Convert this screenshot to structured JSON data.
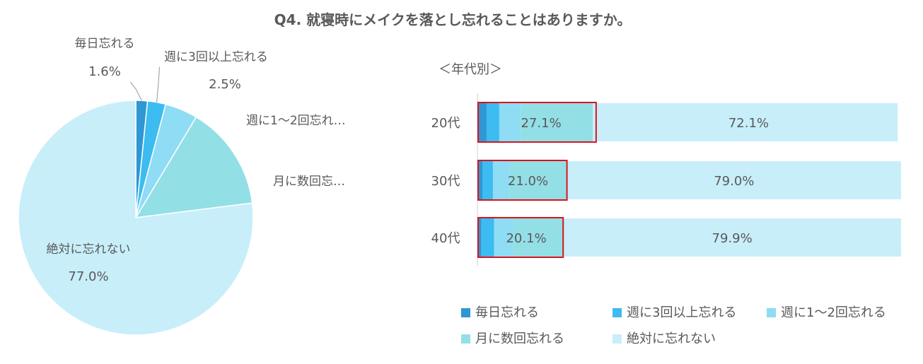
{
  "title": "Q4. 就寝時にメイクを落とし忘れることはありますか。",
  "subtitle": "＜年代別＞",
  "colors": {
    "毎日忘れる": "#2e97d4",
    "週に3回以上忘れる": "#3cbcf0",
    "週に1～2回忘れる": "#8fdcf5",
    "月に数回忘れる": "#93dfe6",
    "絶対に忘れない": "#c8eefa",
    "highlight": "#d9141c"
  },
  "chart_data": [
    {
      "type": "pie",
      "labels": [
        "毎日忘れる",
        "週に3回以上忘れる",
        "週に1～2回忘れ…",
        "月に数回忘…",
        "絶対に忘れない"
      ],
      "series_keys": [
        "毎日忘れる",
        "週に3回以上忘れる",
        "週に1～2回忘れる",
        "月に数回忘れる",
        "絶対に忘れない"
      ],
      "values": [
        1.6,
        2.5,
        4.5,
        14.4,
        77.0
      ],
      "value_labels": [
        "1.6%",
        "2.5%",
        null,
        null,
        "77.0%"
      ]
    },
    {
      "type": "bar",
      "orientation": "horizontal",
      "stacked": true,
      "categories": [
        "20代",
        "30代",
        "40代"
      ],
      "series": [
        {
          "name": "毎日忘れる",
          "values": [
            2.0,
            1.0,
            0.8
          ]
        },
        {
          "name": "週に3回以上忘れる",
          "values": [
            3.0,
            2.5,
            3.0
          ]
        },
        {
          "name": "週に1～2回忘れる",
          "values": [
            5.0,
            4.0,
            4.5
          ]
        },
        {
          "name": "月に数回忘れる",
          "values": [
            17.1,
            13.5,
            11.8
          ]
        },
        {
          "name": "絶対に忘れない",
          "values": [
            72.1,
            79.0,
            79.9
          ]
        }
      ],
      "forget_total_labels": [
        "27.1%",
        "21.0%",
        "20.1%"
      ],
      "never_labels": [
        "72.1%",
        "79.0%",
        "79.9%"
      ],
      "xlim": [
        0,
        100
      ],
      "legend": [
        "毎日忘れる",
        "週に3回以上忘れる",
        "週に1～2回忘れる",
        "月に数回忘れる",
        "絶対に忘れない"
      ],
      "legend_position": "bottom"
    }
  ]
}
